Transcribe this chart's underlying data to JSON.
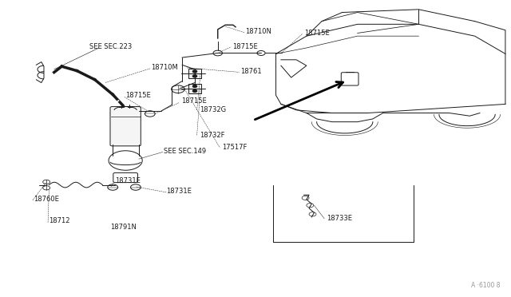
{
  "bg_color": "#ffffff",
  "line_color": "#1a1a1a",
  "fig_width": 6.4,
  "fig_height": 3.72,
  "dpi": 100,
  "watermark": "A ·6100 8",
  "labels": {
    "SEE_SEC_223": [
      0.175,
      0.845,
      "SEE SEC.223"
    ],
    "18710M": [
      0.295,
      0.775,
      "18710M"
    ],
    "18715E_can": [
      0.245,
      0.68,
      "18715E"
    ],
    "18715E_mid": [
      0.355,
      0.66,
      "18715E"
    ],
    "18710N": [
      0.48,
      0.895,
      "18710N"
    ],
    "18715E_top": [
      0.455,
      0.845,
      "18715E"
    ],
    "18761": [
      0.47,
      0.76,
      "18761"
    ],
    "18715E_far": [
      0.595,
      0.89,
      "18715E"
    ],
    "18732G": [
      0.39,
      0.63,
      "18732G"
    ],
    "18732F": [
      0.39,
      0.545,
      "18732F"
    ],
    "17517F": [
      0.435,
      0.505,
      "17517F"
    ],
    "SEE_SEC_149": [
      0.32,
      0.49,
      "SEE SEC.149"
    ],
    "18731E_top": [
      0.225,
      0.39,
      "18731E"
    ],
    "18731E_bot": [
      0.325,
      0.355,
      "18731E"
    ],
    "18760E": [
      0.065,
      0.33,
      "18760E"
    ],
    "18712": [
      0.095,
      0.255,
      "18712"
    ],
    "18791N": [
      0.215,
      0.235,
      "18791N"
    ],
    "18733E": [
      0.64,
      0.265,
      "18733E"
    ]
  }
}
